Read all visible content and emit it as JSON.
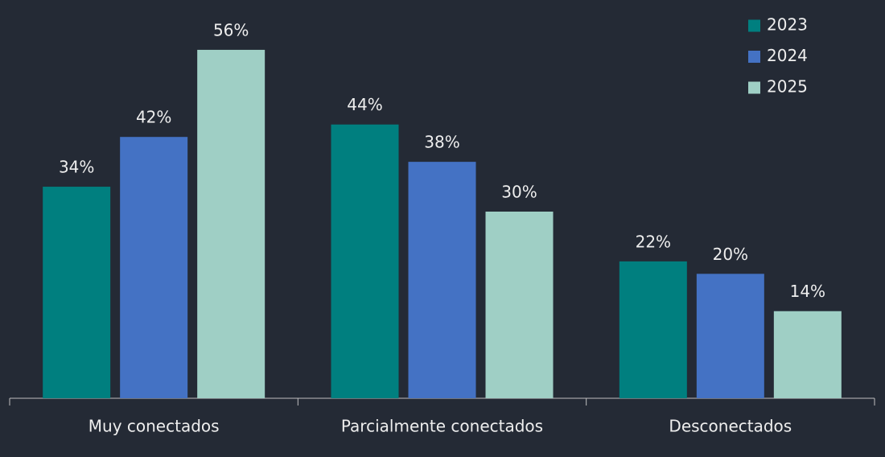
{
  "chart_data": {
    "type": "bar",
    "categories": [
      "Muy conectados",
      "Parcialmente conectados",
      "Desconectados"
    ],
    "series": [
      {
        "name": "2023",
        "color": "#007f7f",
        "values": [
          34,
          44,
          22
        ],
        "value_labels": [
          "34%",
          "44%",
          "22%"
        ]
      },
      {
        "name": "2024",
        "color": "#4472c4",
        "values": [
          42,
          38,
          20
        ],
        "value_labels": [
          "42%",
          "38%",
          "20%"
        ]
      },
      {
        "name": "2025",
        "color": "#9fcfc5",
        "values": [
          56,
          30,
          14
        ],
        "value_labels": [
          "56%",
          "30%",
          "14%"
        ]
      }
    ],
    "ylim": [
      0,
      60
    ],
    "legend": "top-right"
  }
}
